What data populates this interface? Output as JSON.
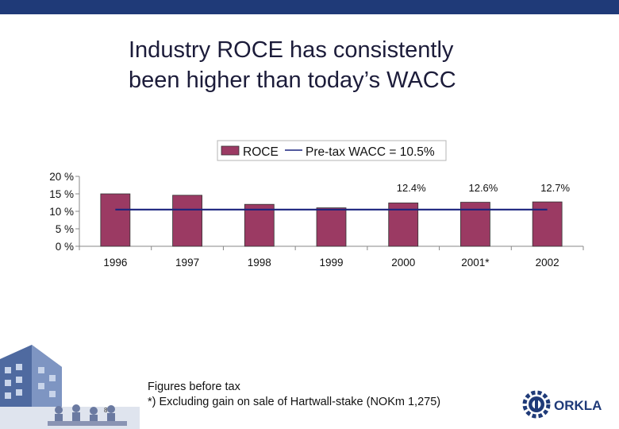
{
  "slide": {
    "title_line1": "Industry ROCE has consistently",
    "title_line2": "been higher than today’s WACC",
    "footnote_line1": "Figures before tax",
    "footnote_line2": "*) Excluding gain on sale of Hartwall-stake (NOKm 1,275)",
    "page_number": "8",
    "logo_text": "ORKLA",
    "colors": {
      "top_bar": "#1f3a78",
      "bar_fill": "#9b3a63",
      "wacc_line": "#1a237e",
      "logo_blue": "#1f3a78"
    }
  },
  "chart_data": {
    "type": "bar",
    "title": "",
    "xlabel": "",
    "ylabel": "",
    "categories": [
      "1996",
      "1997",
      "1998",
      "1999",
      "2000",
      "2001*",
      "2002"
    ],
    "series": [
      {
        "name": "ROCE",
        "type": "bar",
        "values": [
          15.0,
          14.6,
          12.0,
          11.0,
          12.4,
          12.6,
          12.7
        ],
        "data_labels": [
          "",
          "",
          "",
          "",
          "12.4%",
          "12.6%",
          "12.7%"
        ]
      },
      {
        "name": "Pre-tax WACC = 10.5%",
        "type": "line",
        "values": [
          10.5,
          10.5,
          10.5,
          10.5,
          10.5,
          10.5,
          10.5
        ]
      }
    ],
    "ylim": [
      0,
      20
    ],
    "yticks": [
      0,
      5,
      10,
      15,
      20
    ],
    "ytick_labels": [
      "0 %",
      "5 %",
      "10 %",
      "15 %",
      "20 %"
    ],
    "grid": false,
    "legend": "top-center"
  }
}
